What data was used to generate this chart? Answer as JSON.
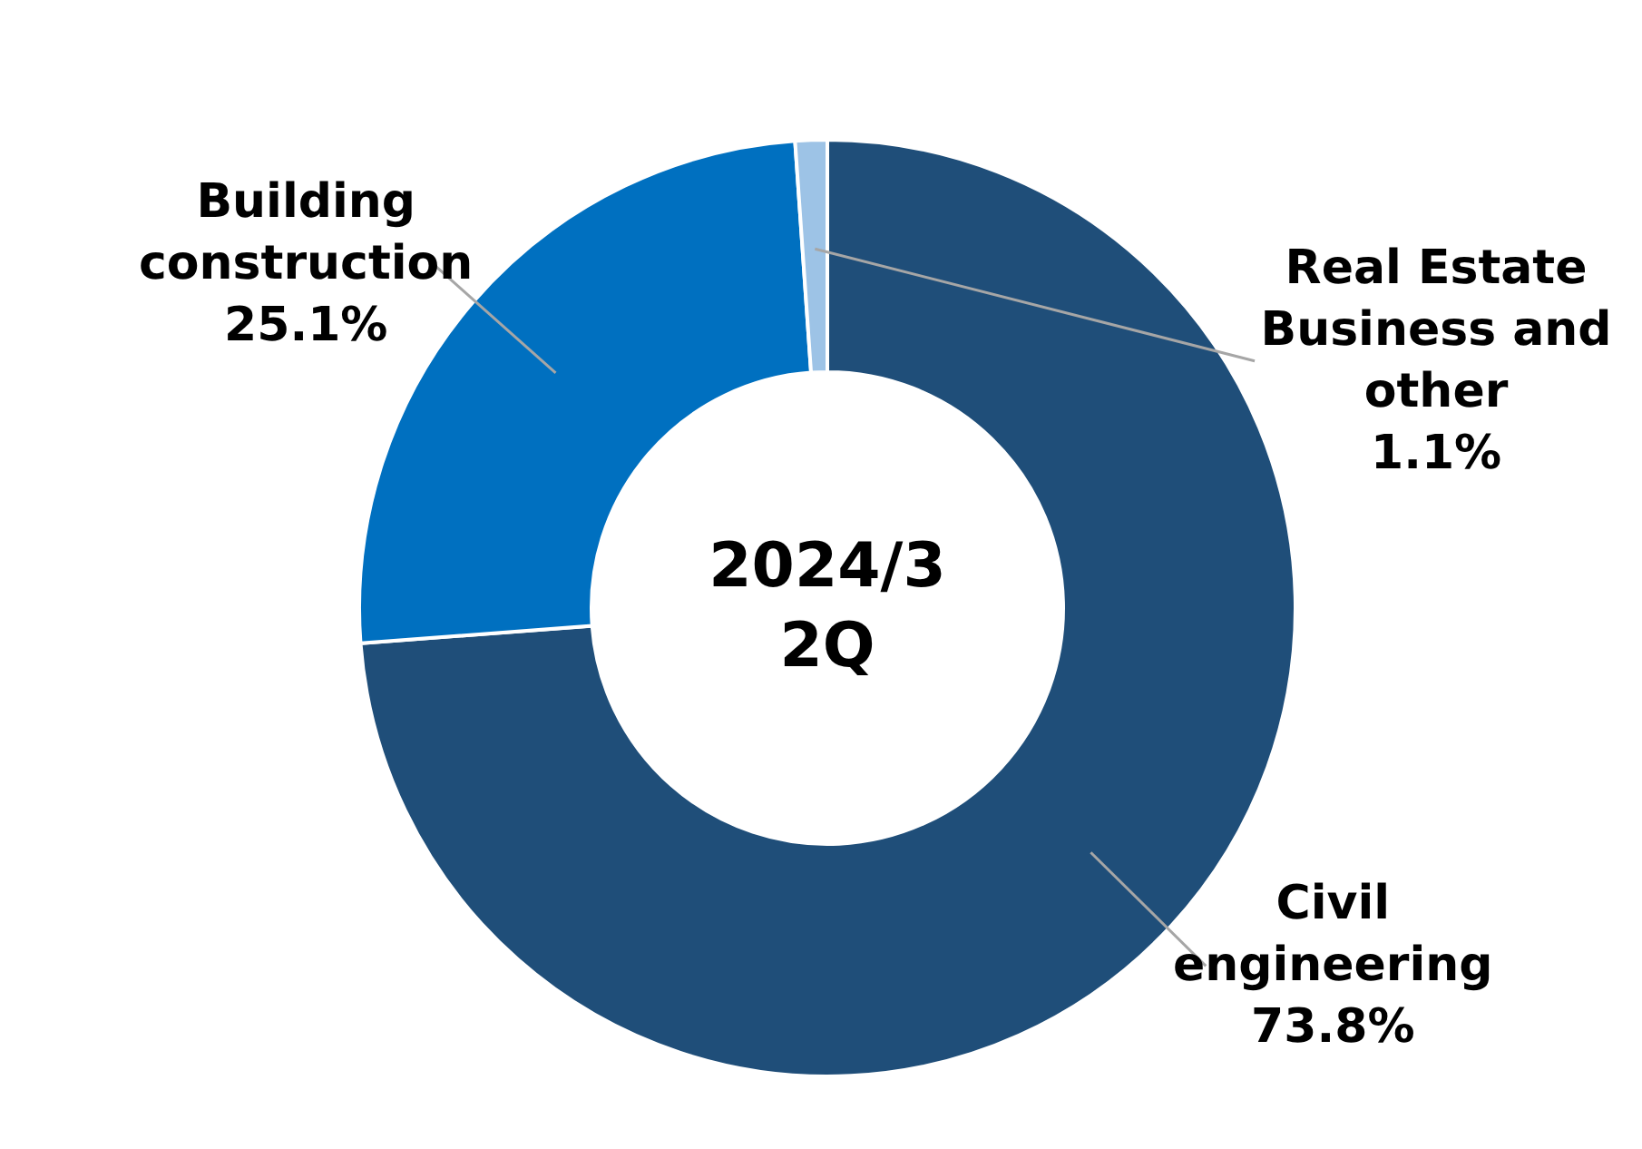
{
  "chart_data": {
    "type": "donut",
    "categories": [
      "Civil engineering",
      "Building construction",
      "Real Estate Business and other"
    ],
    "values": [
      73.8,
      25.1,
      1.1
    ],
    "colors": [
      "#1f4e79",
      "#0070c0",
      "#9dc3e6"
    ],
    "value_labels": [
      "73.8%",
      "25.1%",
      "1.1%"
    ],
    "annotations": [
      "2024/3 2Q"
    ]
  }
}
